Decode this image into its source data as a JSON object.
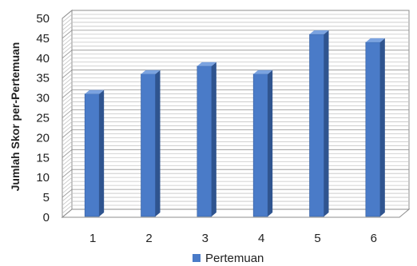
{
  "chart_data": {
    "type": "bar",
    "categories": [
      "1",
      "2",
      "3",
      "4",
      "5",
      "6"
    ],
    "series": [
      {
        "name": "Pertemuan",
        "values": [
          31,
          36,
          38,
          36,
          46,
          44
        ]
      }
    ],
    "xlabel": "",
    "ylabel": "Jumlah Skor per-Pertemuan",
    "ylim": [
      0,
      50
    ],
    "yticks": [
      0,
      5,
      10,
      15,
      20,
      25,
      30,
      35,
      40,
      45,
      50
    ],
    "grid": true,
    "minor_grid": true,
    "three_d": true,
    "legend": {
      "position": "bottom",
      "label": "Pertemuan"
    },
    "colors": {
      "bar": "#4a7bc8",
      "bar_side": "#2f548f",
      "bar_top": "#7ba3e0",
      "grid": "#9a9a9a"
    }
  }
}
